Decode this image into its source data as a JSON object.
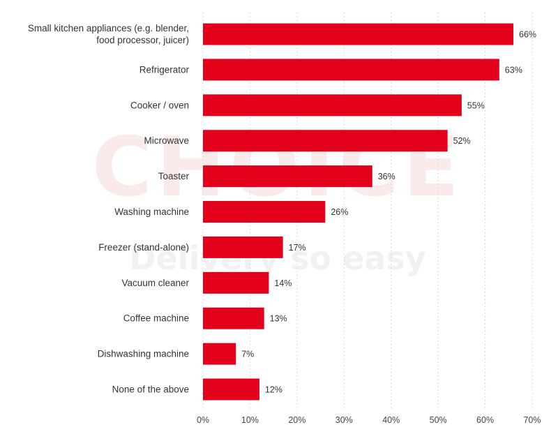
{
  "chart_data": {
    "type": "bar",
    "orientation": "horizontal",
    "categories": [
      [
        "Small kitchen appliances (e.g. blender,",
        "food processor, juicer)"
      ],
      [
        "Refrigerator"
      ],
      [
        "Cooker / oven"
      ],
      [
        "Microwave"
      ],
      [
        "Toaster"
      ],
      [
        "Washing machine"
      ],
      [
        "Freezer (stand-alone)"
      ],
      [
        "Vacuum cleaner"
      ],
      [
        "Coffee machine"
      ],
      [
        "Dishwashing machine"
      ],
      [
        "None of the above"
      ]
    ],
    "values": [
      66,
      63,
      55,
      52,
      36,
      26,
      17,
      14,
      13,
      7,
      12
    ],
    "value_suffix": "%",
    "xlim": [
      0,
      70
    ],
    "x_ticks": [
      0,
      10,
      20,
      30,
      40,
      50,
      60,
      70
    ],
    "x_tick_labels": [
      "0%",
      "10%",
      "20%",
      "30%",
      "40%",
      "50%",
      "60%",
      "70%"
    ],
    "grid": "vertical-dashed",
    "bar_color": "#e3001b",
    "watermark": [
      "CHOICE",
      "Delivery so easy"
    ]
  }
}
